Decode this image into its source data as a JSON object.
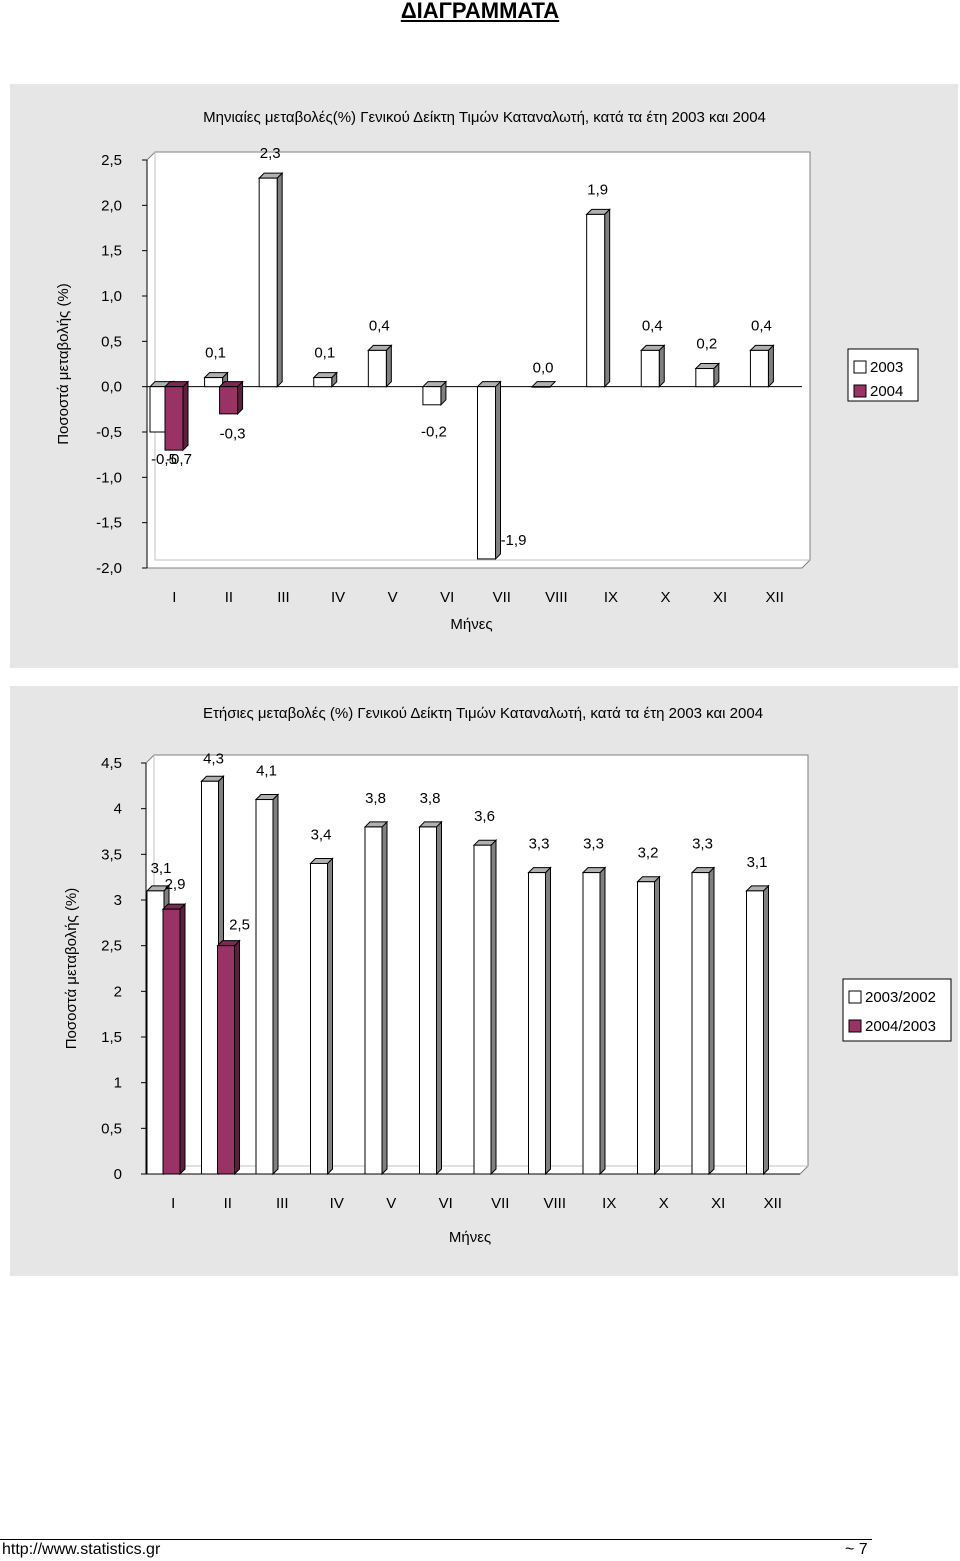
{
  "page_title": "ΔΙΑΓΡΑΜΜΑΤΑ",
  "footer": {
    "url": "http://www.statistics.gr",
    "page": "~ 7"
  },
  "colors": {
    "series_a": "#ffffff",
    "series_b": "#993366",
    "panel_bg": "#e6e6e6",
    "plot_bg": "#ffffff"
  },
  "chart_data": [
    {
      "type": "bar",
      "title": "Μηνιαίες μεταβολές(%) Γενικού Δείκτη Τιμών Καταναλωτή, κατά τα έτη 2003 και 2004",
      "xlabel": "Μήνες",
      "ylabel": "Ποσοστά μεταβολής (%)",
      "ylim": [
        -2.0,
        2.5
      ],
      "yticks": [
        "2,5",
        "2,0",
        "1,5",
        "1,0",
        "0,5",
        "0,0",
        "-0,5",
        "-1,0",
        "-1,5",
        "-2,0"
      ],
      "yticks_values": [
        2.5,
        2.0,
        1.5,
        1.0,
        0.5,
        0.0,
        -0.5,
        -1.0,
        -1.5,
        -2.0
      ],
      "categories": [
        "I",
        "II",
        "III",
        "IV",
        "V",
        "VI",
        "VII",
        "VIII",
        "IX",
        "X",
        "XI",
        "XII"
      ],
      "legend_position": "right",
      "series": [
        {
          "name": "2003",
          "values": [
            -0.5,
            0.1,
            2.3,
            0.1,
            0.4,
            -0.2,
            -1.9,
            0.0,
            1.9,
            0.4,
            0.2,
            0.4
          ],
          "labels": [
            "-0,5",
            "0,1",
            "2,3",
            "0,1",
            "0,4",
            "-0,2",
            "-1,9",
            "0,0",
            "1,9",
            "0,4",
            "0,2",
            "0,4"
          ]
        },
        {
          "name": "2004",
          "values": [
            -0.7,
            -0.3,
            null,
            null,
            null,
            null,
            null,
            null,
            null,
            null,
            null,
            null
          ],
          "labels": [
            "-0,7",
            "-0,3",
            null,
            null,
            null,
            null,
            null,
            null,
            null,
            null,
            null,
            null
          ]
        }
      ]
    },
    {
      "type": "bar",
      "title": "Ετήσιες μεταβολές (%) Γενικού Δείκτη Τιμών Καταναλωτή, κατά τα έτη 2003 και 2004",
      "xlabel": "Μήνες",
      "ylabel": "Ποσοστά μεταβολής (%)",
      "ylim": [
        0,
        4.5
      ],
      "yticks": [
        "4,5",
        "4",
        "3,5",
        "3",
        "2,5",
        "2",
        "1,5",
        "1",
        "0,5",
        "0"
      ],
      "yticks_values": [
        4.5,
        4,
        3.5,
        3,
        2.5,
        2,
        1.5,
        1,
        0.5,
        0
      ],
      "categories": [
        "I",
        "II",
        "III",
        "IV",
        "V",
        "VI",
        "VII",
        "VIII",
        "IX",
        "X",
        "XI",
        "XII"
      ],
      "legend_position": "right",
      "series": [
        {
          "name": "2003/2002",
          "values": [
            3.1,
            4.3,
            4.1,
            3.4,
            3.8,
            3.8,
            3.6,
            3.3,
            3.3,
            3.2,
            3.3,
            3.1
          ],
          "labels": [
            "3,1",
            "4,3",
            "4,1",
            "3,4",
            "3,8",
            "3,8",
            "3,6",
            "3,3",
            "3,3",
            "3,2",
            "3,3",
            "3,1"
          ]
        },
        {
          "name": "2004/2003",
          "values": [
            2.9,
            2.5,
            null,
            null,
            null,
            null,
            null,
            null,
            null,
            null,
            null,
            null
          ],
          "labels": [
            "2,9",
            "2,5",
            null,
            null,
            null,
            null,
            null,
            null,
            null,
            null,
            null,
            null
          ]
        }
      ]
    }
  ]
}
